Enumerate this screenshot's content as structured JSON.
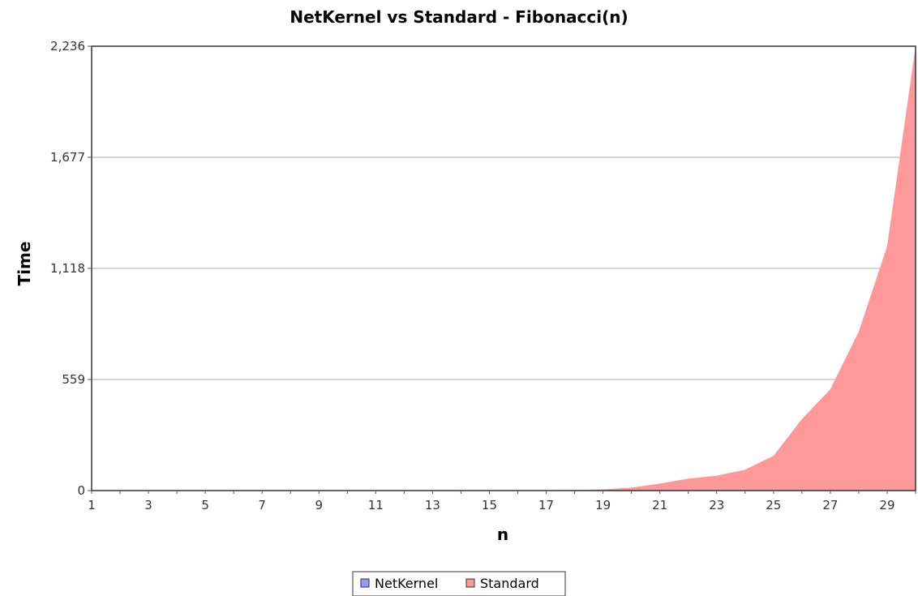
{
  "chart_data": {
    "type": "area",
    "title": "NetKernel vs Standard - Fibonacci(n)",
    "xlabel": "n",
    "ylabel": "Time",
    "x": [
      1,
      2,
      3,
      4,
      5,
      6,
      7,
      8,
      9,
      10,
      11,
      12,
      13,
      14,
      15,
      16,
      17,
      18,
      19,
      20,
      21,
      22,
      23,
      24,
      25,
      26,
      27,
      28,
      29,
      30
    ],
    "x_tick_labels": [
      "1",
      "3",
      "5",
      "7",
      "9",
      "11",
      "13",
      "15",
      "17",
      "19",
      "21",
      "23",
      "25",
      "27",
      "29"
    ],
    "xlim": [
      1,
      30
    ],
    "y_tick_labels": [
      "0",
      "559",
      "1,118",
      "1,677",
      "2,236"
    ],
    "yticks": [
      0,
      559,
      1118,
      1677,
      2236
    ],
    "ylim": [
      0,
      2236
    ],
    "grid": true,
    "legend_position": "bottom",
    "series": [
      {
        "name": "NetKernel",
        "color": "#9999ff",
        "values": [
          0,
          0,
          0,
          0,
          0,
          0,
          0,
          0,
          0,
          0,
          0,
          0,
          0,
          0,
          0,
          0,
          0,
          0,
          0,
          0,
          0,
          0,
          0,
          0,
          0,
          0,
          0,
          0,
          0,
          0
        ]
      },
      {
        "name": "Standard",
        "color": "#ff9999",
        "values": [
          0,
          0,
          0,
          0,
          0,
          0,
          0,
          0,
          0,
          0,
          0,
          0,
          0,
          0,
          0,
          0,
          1,
          3,
          6,
          15,
          35,
          60,
          75,
          105,
          175,
          360,
          510,
          800,
          1230,
          2236
        ]
      }
    ]
  }
}
